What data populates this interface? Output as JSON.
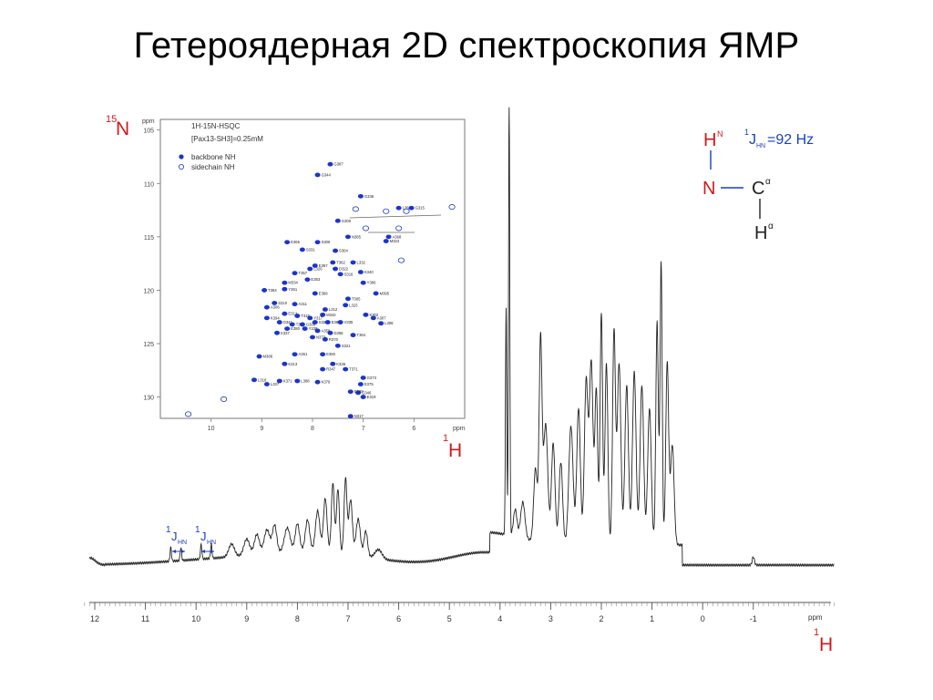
{
  "slide": {
    "title": "Гетероядерная 2D спектроскопия ЯМР"
  },
  "colors": {
    "accent_red": "#d11a1a",
    "accent_blue": "#1a3fbf",
    "peak_blue": "#1b35c9",
    "spectrum_line": "#222222"
  },
  "hsqc": {
    "y_nucleus": {
      "mass": "15",
      "symbol": "N"
    },
    "x_nucleus": {
      "mass": "1",
      "symbol": "H"
    },
    "unit": "ppm",
    "legend_line1": "1H-15N-HSQC",
    "legend_line2": "[Pax13-SH3]=0.25mM",
    "legend_filled": "backbone NH",
    "legend_open": "sidechain NH"
  },
  "structure": {
    "coupling": "1JHN=92 Hz",
    "hn": "HN",
    "n": "N",
    "ca": "Cα",
    "ha": "Hα"
  },
  "spectrum": {
    "x_nucleus": {
      "mass": "1",
      "symbol": "H"
    },
    "unit": "ppm",
    "coupling_label_1": "1JHN",
    "coupling_label_2": "1JHN"
  },
  "chart_data": [
    {
      "type": "scatter",
      "xlabel": "1H",
      "ylabel": "15N",
      "x_unit": "ppm",
      "y_unit": "ppm",
      "xlim": [
        11,
        5
      ],
      "ylim": [
        104,
        132
      ],
      "x_ticks": [
        10,
        9,
        8,
        7,
        6
      ],
      "y_ticks": [
        105,
        110,
        115,
        120,
        125,
        130
      ],
      "legend": [
        "backbone NH",
        "sidechain NH"
      ],
      "legend_position": "top-left",
      "annotations": [
        "1H-15N-HSQC",
        "[Pax13-SH3]=0.25mM"
      ],
      "series": [
        {
          "name": "backbone NH",
          "points": [
            [
              7.65,
              108.2,
              "G387"
            ],
            [
              7.9,
              109.2,
              "G344"
            ],
            [
              7.05,
              111.2,
              "G336"
            ],
            [
              6.3,
              112.3,
              "L367"
            ],
            [
              6.05,
              112.3,
              "G315"
            ],
            [
              7.5,
              113.5,
              "G300"
            ],
            [
              7.3,
              115.0,
              "N385"
            ],
            [
              6.5,
              115.0,
              "A368"
            ],
            [
              8.5,
              115.5,
              "E365"
            ],
            [
              7.9,
              115.5,
              "S306"
            ],
            [
              8.2,
              116.2,
              "S331"
            ],
            [
              7.55,
              116.3,
              "S304"
            ],
            [
              6.55,
              115.4,
              "M324"
            ],
            [
              7.2,
              117.4,
              "L332"
            ],
            [
              7.6,
              117.4,
              "T362"
            ],
            [
              7.95,
              117.7,
              "E367"
            ],
            [
              8.05,
              118.0,
              "L326"
            ],
            [
              7.55,
              118.0,
              "D322"
            ],
            [
              7.45,
              118.5,
              "S316"
            ],
            [
              7.05,
              118.3,
              "K340"
            ],
            [
              8.35,
              118.4,
              "T357"
            ],
            [
              8.1,
              119.0,
              "E353"
            ],
            [
              8.55,
              119.3,
              "M334"
            ],
            [
              7.0,
              119.3,
              "Y366"
            ],
            [
              6.75,
              120.3,
              "M395"
            ],
            [
              8.55,
              119.9,
              "Y361"
            ],
            [
              8.95,
              120.0,
              "T384"
            ],
            [
              7.95,
              120.3,
              "E368"
            ],
            [
              7.3,
              120.8,
              "T305"
            ],
            [
              8.75,
              121.2,
              "S310"
            ],
            [
              8.35,
              121.3,
              "A311"
            ],
            [
              7.35,
              121.4,
              "L323"
            ],
            [
              8.9,
              121.6,
              "A306"
            ],
            [
              7.75,
              121.8,
              "L312"
            ],
            [
              8.55,
              122.2,
              "E312"
            ],
            [
              8.3,
              122.4,
              "T316"
            ],
            [
              8.05,
              122.6,
              "Y317"
            ],
            [
              7.8,
              122.3,
              "M342"
            ],
            [
              6.95,
              122.3,
              "K302"
            ],
            [
              6.8,
              122.6,
              "A307"
            ],
            [
              8.9,
              122.6,
              "K394"
            ],
            [
              8.65,
              123.0,
              "D341"
            ],
            [
              8.4,
              123.2,
              "T335"
            ],
            [
              8.2,
              123.2,
              "G309"
            ],
            [
              7.95,
              123.0,
              "S323"
            ],
            [
              7.7,
              123.0,
              "E389"
            ],
            [
              7.45,
              123.0,
              "V335"
            ],
            [
              6.65,
              123.1,
              "L308"
            ],
            [
              8.5,
              123.6,
              "E380"
            ],
            [
              8.15,
              123.6,
              "Y338"
            ],
            [
              7.9,
              123.8,
              "A358"
            ],
            [
              8.7,
              124.0,
              "K337"
            ],
            [
              7.65,
              124.0,
              "D356"
            ],
            [
              7.2,
              124.2,
              "T364"
            ],
            [
              8.0,
              124.4,
              "N373"
            ],
            [
              7.75,
              124.6,
              "R370"
            ],
            [
              7.5,
              125.2,
              "S321"
            ],
            [
              9.05,
              126.2,
              "M386"
            ],
            [
              8.35,
              126.0,
              "A351"
            ],
            [
              7.8,
              126.0,
              "E360"
            ],
            [
              8.55,
              126.9,
              "K313"
            ],
            [
              7.6,
              126.9,
              "K336"
            ],
            [
              7.8,
              127.4,
              "R347"
            ],
            [
              7.35,
              127.4,
              "T371"
            ],
            [
              9.15,
              128.4,
              "L318"
            ],
            [
              8.65,
              128.5,
              "K371"
            ],
            [
              8.3,
              128.5,
              "L388"
            ],
            [
              7.9,
              128.6,
              "K379"
            ],
            [
              8.9,
              128.8,
              "L337"
            ],
            [
              7.05,
              128.8,
              "E375"
            ],
            [
              7.1,
              129.6,
              "G346"
            ],
            [
              7.25,
              129.5,
              "E309"
            ],
            [
              7.25,
              131.8,
              "N317"
            ],
            [
              7.0,
              128.2,
              "G373"
            ],
            [
              7.0,
              130.0,
              "E319"
            ]
          ]
        },
        {
          "name": "sidechain NH",
          "points": [
            [
              7.15,
              112.4
            ],
            [
              6.15,
              112.6
            ],
            [
              5.25,
              112.2
            ],
            [
              6.55,
              112.6
            ],
            [
              6.95,
              114.2
            ],
            [
              6.3,
              114.2
            ],
            [
              6.25,
              117.2
            ],
            [
              9.75,
              130.2
            ],
            [
              10.45,
              131.6
            ]
          ]
        }
      ]
    },
    {
      "type": "line",
      "xlabel": "1H",
      "x_unit": "ppm",
      "xlim": [
        12.2,
        -2.6
      ],
      "x_ticks": [
        12,
        11,
        10,
        9,
        8,
        7,
        6,
        5,
        4,
        3,
        2,
        1,
        0,
        -1
      ],
      "annotations": [
        "1JHN",
        "1JHN"
      ],
      "peaks_ppm": [
        10.5,
        10.3,
        9.9,
        9.7,
        8.5,
        7.3,
        7.1,
        3.8,
        3.2,
        2.0,
        1.6,
        1.3,
        0.85,
        0.7,
        -1.0
      ]
    }
  ]
}
